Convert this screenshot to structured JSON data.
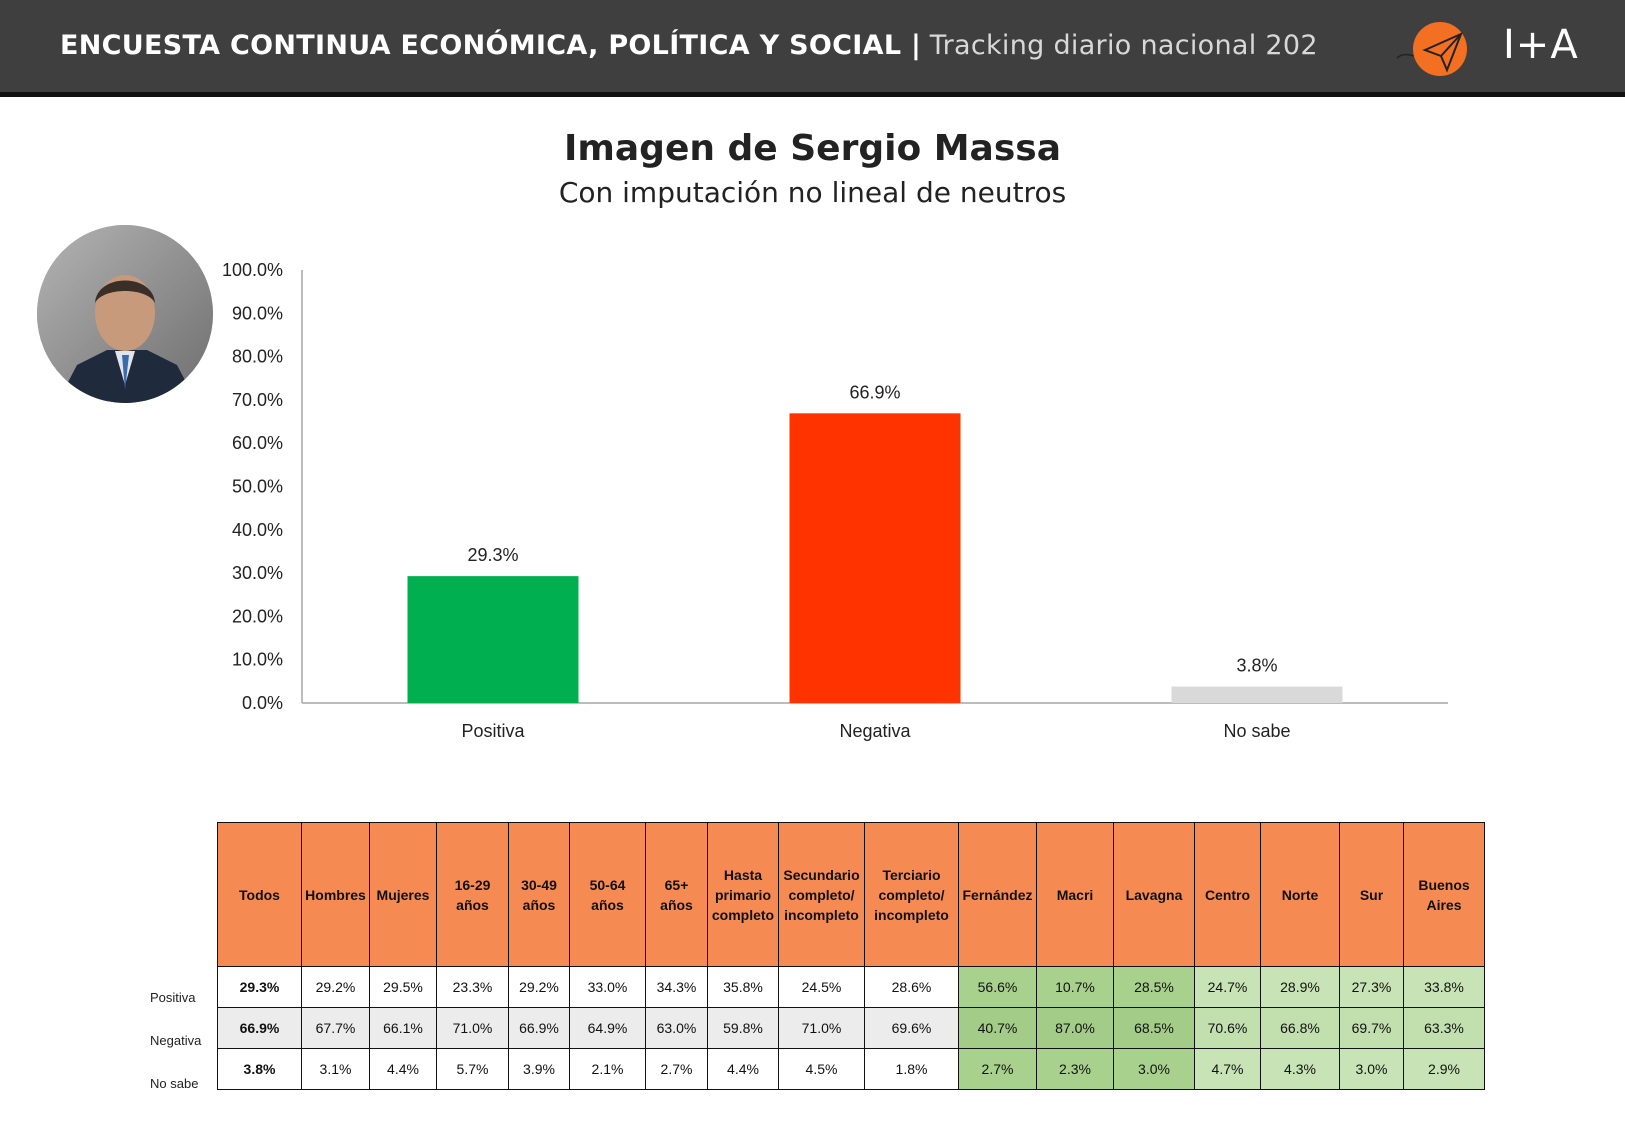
{
  "header": {
    "title_bold": "ENCUESTA CONTINUA ECONÓMICA, POLÍTICA Y SOCIAL |",
    "title_light": "Tracking diario nacional 202",
    "logo_text": "I+A"
  },
  "colors": {
    "header_bg": "#3f3f3f",
    "positiva": "#00b050",
    "negativa": "#ff3300",
    "no_sabe": "#d9d9d9",
    "table_header": "#f58b53",
    "table_green_dark": "#a9d18e",
    "table_green_light": "#c8e3b6"
  },
  "chart_data": {
    "type": "bar",
    "title": "Imagen de Sergio Massa",
    "subtitle": "Con imputación no lineal de neutros",
    "categories": [
      "Positiva",
      "Negativa",
      "No sabe"
    ],
    "values": [
      29.3,
      66.9,
      3.8
    ],
    "value_labels": [
      "29.3%",
      "66.9%",
      "3.8%"
    ],
    "y_ticks": [
      "0.0%",
      "10.0%",
      "20.0%",
      "30.0%",
      "40.0%",
      "50.0%",
      "60.0%",
      "70.0%",
      "80.0%",
      "90.0%",
      "100.0%"
    ],
    "ylim": [
      0,
      100
    ],
    "grid": false,
    "legend": "none"
  },
  "table": {
    "row_labels": [
      "Positiva",
      "Negativa",
      "No sabe"
    ],
    "columns": [
      "Todos",
      "Hombres",
      "Mujeres",
      "16-29\naños",
      "30-49\naños",
      "50-64\naños",
      "65+\naños",
      "Hasta\nprimario\ncompleto",
      "Secundario\ncompleto/\nincompleto",
      "Terciario\ncompleto/\nincompleto",
      "Fernández",
      "Macri",
      "Lavagna",
      "Centro",
      "Norte",
      "Sur",
      "Buenos\nAires"
    ],
    "rows": [
      [
        "29.3%",
        "29.2%",
        "29.5%",
        "23.3%",
        "29.2%",
        "33.0%",
        "34.3%",
        "35.8%",
        "24.5%",
        "28.6%",
        "56.6%",
        "10.7%",
        "28.5%",
        "24.7%",
        "28.9%",
        "27.3%",
        "33.8%"
      ],
      [
        "66.9%",
        "67.7%",
        "66.1%",
        "71.0%",
        "66.9%",
        "64.9%",
        "63.0%",
        "59.8%",
        "71.0%",
        "69.6%",
        "40.7%",
        "87.0%",
        "68.5%",
        "70.6%",
        "66.8%",
        "69.7%",
        "63.3%"
      ],
      [
        "3.8%",
        "3.1%",
        "4.4%",
        "5.7%",
        "3.9%",
        "2.1%",
        "2.7%",
        "4.4%",
        "4.5%",
        "1.8%",
        "2.7%",
        "2.3%",
        "3.0%",
        "4.7%",
        "4.3%",
        "3.0%",
        "2.9%"
      ]
    ]
  }
}
